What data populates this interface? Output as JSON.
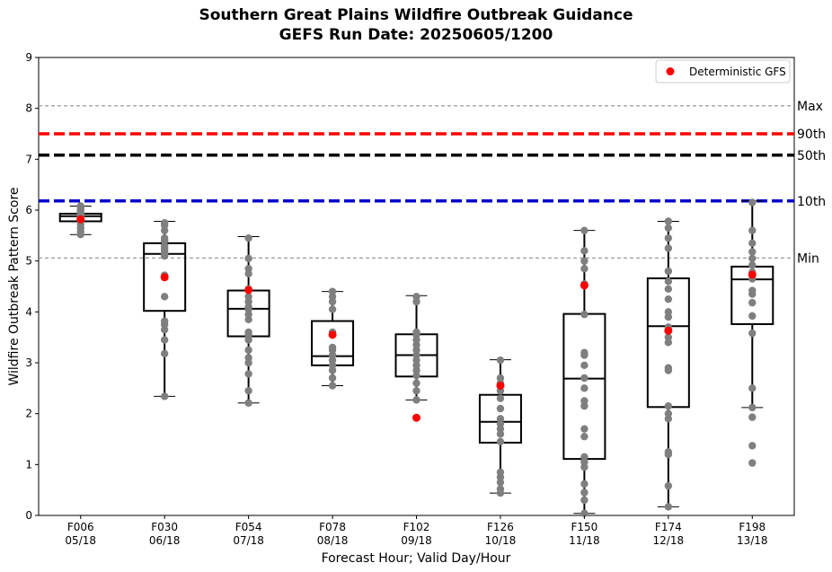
{
  "chart_data": {
    "type": "box",
    "title_line1": "Southern Great Plains Wildfire Outbreak Guidance",
    "title_line2": "GEFS Run Date: 20250605/1200",
    "xlabel": "Forecast Hour; Valid Day/Hour",
    "ylabel": "Wildfire Outbreak Pattern Score",
    "ylim": [
      0,
      9
    ],
    "yticks": [
      0,
      1,
      2,
      3,
      4,
      5,
      6,
      7,
      8,
      9
    ],
    "legend": {
      "label": "Deterministic GFS",
      "position": "top-right",
      "color": "#ff0000"
    },
    "reference_lines": [
      {
        "name": "Max",
        "value": 8.05,
        "color": "#808080",
        "style": "thin-dashed"
      },
      {
        "name": "90th",
        "value": 7.5,
        "color": "#ff0000",
        "style": "thick-dashed"
      },
      {
        "name": "50th",
        "value": 7.08,
        "color": "#000000",
        "style": "thick-dashed"
      },
      {
        "name": "10th",
        "value": 6.18,
        "color": "#0000cc",
        "style": "thick-dashed"
      },
      {
        "name": "Min",
        "value": 5.06,
        "color": "#808080",
        "style": "thin-dashed"
      }
    ],
    "categories": [
      {
        "hour": "F006",
        "valid": "05/18",
        "whisker_low": 5.52,
        "q1": 5.78,
        "median": 5.88,
        "q3": 5.93,
        "whisker_high": 6.08,
        "deterministic": 5.82,
        "members": [
          5.52,
          5.58,
          5.65,
          5.72,
          5.78,
          5.82,
          5.86,
          5.88,
          5.9,
          5.92,
          5.94,
          5.97,
          6.0,
          6.05,
          6.08
        ]
      },
      {
        "hour": "F030",
        "valid": "06/18",
        "whisker_low": 2.34,
        "q1": 4.02,
        "median": 5.14,
        "q3": 5.35,
        "whisker_high": 5.78,
        "deterministic": 4.68,
        "members": [
          2.34,
          3.18,
          3.45,
          3.65,
          3.75,
          3.82,
          4.3,
          4.68,
          4.72,
          5.1,
          5.15,
          5.2,
          5.25,
          5.3,
          5.4,
          5.45,
          5.6,
          5.7,
          5.75
        ]
      },
      {
        "hour": "F054",
        "valid": "07/18",
        "whisker_low": 2.21,
        "q1": 3.52,
        "median": 4.06,
        "q3": 4.42,
        "whisker_high": 5.48,
        "deterministic": 4.43,
        "members": [
          2.21,
          2.45,
          2.78,
          3.0,
          3.1,
          3.25,
          3.45,
          3.55,
          3.6,
          3.85,
          3.95,
          4.05,
          4.1,
          4.2,
          4.3,
          4.45,
          4.75,
          4.85,
          5.05,
          5.45
        ]
      },
      {
        "hour": "F078",
        "valid": "08/18",
        "whisker_low": 2.55,
        "q1": 2.95,
        "median": 3.13,
        "q3": 3.82,
        "whisker_high": 4.4,
        "deterministic": 3.55,
        "members": [
          2.55,
          2.7,
          2.85,
          2.95,
          3.05,
          3.15,
          3.25,
          3.3,
          3.6,
          4.05,
          4.2,
          4.3,
          4.4
        ]
      },
      {
        "hour": "F102",
        "valid": "09/18",
        "whisker_low": 2.27,
        "q1": 2.73,
        "median": 3.15,
        "q3": 3.56,
        "whisker_high": 4.32,
        "deterministic": 1.92,
        "members": [
          2.27,
          2.45,
          2.6,
          2.75,
          2.85,
          2.95,
          3.05,
          3.15,
          3.25,
          3.35,
          3.45,
          3.55,
          3.6,
          4.2,
          4.3
        ]
      },
      {
        "hour": "F126",
        "valid": "10/18",
        "whisker_low": 0.44,
        "q1": 1.43,
        "median": 1.84,
        "q3": 2.37,
        "whisker_high": 3.06,
        "deterministic": 2.55,
        "members": [
          0.44,
          0.52,
          0.65,
          0.75,
          0.85,
          1.45,
          1.6,
          1.7,
          1.8,
          1.9,
          2.1,
          2.3,
          2.45,
          2.6,
          2.7,
          3.05
        ]
      },
      {
        "hour": "F150",
        "valid": "11/18",
        "whisker_low": 0.04,
        "q1": 1.11,
        "median": 2.69,
        "q3": 3.96,
        "whisker_high": 5.6,
        "deterministic": 4.52,
        "members": [
          0.04,
          0.3,
          0.45,
          0.62,
          0.95,
          1.05,
          1.15,
          1.55,
          1.7,
          2.15,
          2.25,
          2.5,
          2.7,
          2.95,
          3.15,
          3.2,
          3.95,
          4.55,
          4.85,
          5.0,
          5.2,
          5.6
        ]
      },
      {
        "hour": "F174",
        "valid": "12/18",
        "whisker_low": 0.17,
        "q1": 2.13,
        "median": 3.72,
        "q3": 4.66,
        "whisker_high": 5.78,
        "deterministic": 3.63,
        "members": [
          0.17,
          0.58,
          1.2,
          1.25,
          1.9,
          2.0,
          2.15,
          2.85,
          2.9,
          3.4,
          3.5,
          3.7,
          3.9,
          4.0,
          4.25,
          4.45,
          4.6,
          4.8,
          5.25,
          5.45,
          5.65,
          5.78
        ]
      },
      {
        "hour": "F198",
        "valid": "13/18",
        "whisker_low": 2.12,
        "q1": 3.76,
        "median": 4.64,
        "q3": 4.89,
        "whisker_high": 6.18,
        "deterministic": 4.73,
        "members": [
          1.03,
          1.37,
          1.93,
          2.12,
          2.5,
          3.58,
          3.92,
          4.18,
          4.35,
          4.42,
          4.65,
          4.78,
          4.92,
          5.05,
          5.18,
          5.35,
          5.6,
          6.15
        ]
      }
    ]
  }
}
